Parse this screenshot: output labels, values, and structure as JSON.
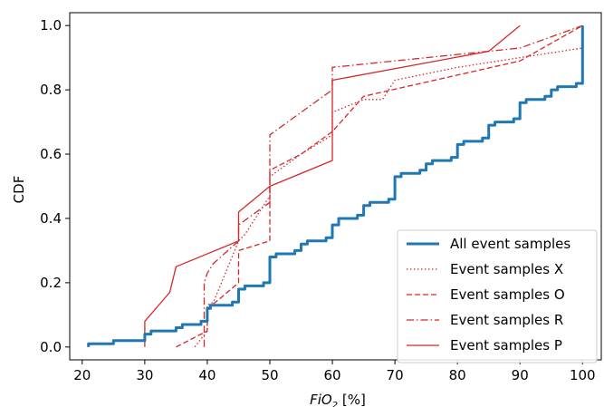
{
  "chart_data": {
    "type": "line",
    "subtype": "empirical CDF (step)",
    "title": "",
    "xlabel": "FiO",
    "xlabel_sub": "2",
    "xlabel_unit": " [%]",
    "ylabel": "CDF",
    "xlim": [
      18,
      103
    ],
    "ylim": [
      -0.04,
      1.04
    ],
    "xticks": [
      20,
      30,
      40,
      50,
      60,
      70,
      80,
      90,
      100
    ],
    "yticks": [
      "0.0",
      "0.2",
      "0.4",
      "0.6",
      "0.8",
      "1.0"
    ],
    "grid": false,
    "legend_position": "lower-right",
    "series": [
      {
        "name": "All event samples",
        "color": "#1f77b4",
        "dash": "solid",
        "width": 3,
        "points": [
          [
            21,
            0
          ],
          [
            21,
            0.01
          ],
          [
            25,
            0.01
          ],
          [
            25,
            0.02
          ],
          [
            30,
            0.02
          ],
          [
            30,
            0.04
          ],
          [
            31,
            0.04
          ],
          [
            31,
            0.05
          ],
          [
            35,
            0.05
          ],
          [
            35,
            0.06
          ],
          [
            36,
            0.06
          ],
          [
            36,
            0.07
          ],
          [
            39,
            0.07
          ],
          [
            39,
            0.08
          ],
          [
            40,
            0.08
          ],
          [
            40,
            0.12
          ],
          [
            40.5,
            0.12
          ],
          [
            40.5,
            0.13
          ],
          [
            44,
            0.13
          ],
          [
            44,
            0.14
          ],
          [
            45,
            0.14
          ],
          [
            45,
            0.18
          ],
          [
            46,
            0.18
          ],
          [
            46,
            0.19
          ],
          [
            49,
            0.19
          ],
          [
            49,
            0.2
          ],
          [
            50,
            0.2
          ],
          [
            50,
            0.28
          ],
          [
            51,
            0.28
          ],
          [
            51,
            0.29
          ],
          [
            54,
            0.29
          ],
          [
            54,
            0.3
          ],
          [
            55,
            0.3
          ],
          [
            55,
            0.32
          ],
          [
            56,
            0.32
          ],
          [
            56,
            0.33
          ],
          [
            59,
            0.33
          ],
          [
            59,
            0.34
          ],
          [
            60,
            0.34
          ],
          [
            60,
            0.38
          ],
          [
            61,
            0.38
          ],
          [
            61,
            0.4
          ],
          [
            64,
            0.4
          ],
          [
            64,
            0.41
          ],
          [
            65,
            0.41
          ],
          [
            65,
            0.44
          ],
          [
            66,
            0.44
          ],
          [
            66,
            0.45
          ],
          [
            69,
            0.45
          ],
          [
            69,
            0.46
          ],
          [
            70,
            0.46
          ],
          [
            70,
            0.53
          ],
          [
            71,
            0.53
          ],
          [
            71,
            0.54
          ],
          [
            74,
            0.54
          ],
          [
            74,
            0.55
          ],
          [
            75,
            0.55
          ],
          [
            75,
            0.57
          ],
          [
            76,
            0.57
          ],
          [
            76,
            0.58
          ],
          [
            79,
            0.58
          ],
          [
            79,
            0.59
          ],
          [
            80,
            0.59
          ],
          [
            80,
            0.63
          ],
          [
            81,
            0.63
          ],
          [
            81,
            0.64
          ],
          [
            84,
            0.64
          ],
          [
            84,
            0.65
          ],
          [
            85,
            0.65
          ],
          [
            85,
            0.69
          ],
          [
            86,
            0.69
          ],
          [
            86,
            0.7
          ],
          [
            89,
            0.7
          ],
          [
            89,
            0.71
          ],
          [
            90,
            0.71
          ],
          [
            90,
            0.76
          ],
          [
            91,
            0.76
          ],
          [
            91,
            0.77
          ],
          [
            94,
            0.77
          ],
          [
            94,
            0.78
          ],
          [
            95,
            0.78
          ],
          [
            95,
            0.8
          ],
          [
            96,
            0.8
          ],
          [
            96,
            0.81
          ],
          [
            99,
            0.81
          ],
          [
            99,
            0.82
          ],
          [
            100,
            0.82
          ],
          [
            100,
            1.0
          ]
        ]
      },
      {
        "name": "Event samples X",
        "color": "#d62728",
        "dash": "1.5,2.5",
        "width": 1.3,
        "points": [
          [
            38,
            0
          ],
          [
            40,
            0.05
          ],
          [
            40,
            0.13
          ],
          [
            41,
            0.14
          ],
          [
            45,
            0.33
          ],
          [
            46,
            0.35
          ],
          [
            50,
            0.47
          ],
          [
            50,
            0.53
          ],
          [
            55,
            0.6
          ],
          [
            60,
            0.66
          ],
          [
            60,
            0.73
          ],
          [
            65,
            0.77
          ],
          [
            68,
            0.77
          ],
          [
            70,
            0.83
          ],
          [
            80,
            0.87
          ],
          [
            90,
            0.9
          ],
          [
            100,
            0.93
          ]
        ]
      },
      {
        "name": "Event samples O",
        "color": "#d62728",
        "dash": "6,3",
        "width": 1.3,
        "points": [
          [
            35,
            0
          ],
          [
            40,
            0.05
          ],
          [
            40,
            0.12
          ],
          [
            42,
            0.15
          ],
          [
            45,
            0.2
          ],
          [
            45,
            0.3
          ],
          [
            50,
            0.33
          ],
          [
            50,
            0.55
          ],
          [
            55,
            0.6
          ],
          [
            60,
            0.67
          ],
          [
            65,
            0.78
          ],
          [
            90,
            0.89
          ],
          [
            100,
            1.0
          ]
        ]
      },
      {
        "name": "Event samples R",
        "color": "#d62728",
        "dash": "8,3,1.5,3",
        "width": 1.3,
        "points": [
          [
            39.5,
            0
          ],
          [
            39.5,
            0.2
          ],
          [
            40,
            0.23
          ],
          [
            41,
            0.26
          ],
          [
            45,
            0.33
          ],
          [
            45,
            0.38
          ],
          [
            50,
            0.45
          ],
          [
            50,
            0.66
          ],
          [
            55,
            0.73
          ],
          [
            60,
            0.8
          ],
          [
            60,
            0.87
          ],
          [
            90,
            0.93
          ],
          [
            100,
            1.0
          ]
        ]
      },
      {
        "name": "Event samples P",
        "color": "#d62728",
        "dash": "solid",
        "width": 1.3,
        "points": [
          [
            30,
            0
          ],
          [
            30,
            0.08
          ],
          [
            34,
            0.17
          ],
          [
            35,
            0.25
          ],
          [
            45,
            0.33
          ],
          [
            45,
            0.42
          ],
          [
            50,
            0.5
          ],
          [
            60,
            0.58
          ],
          [
            60,
            0.83
          ],
          [
            85,
            0.92
          ],
          [
            90,
            1.0
          ]
        ]
      }
    ]
  }
}
